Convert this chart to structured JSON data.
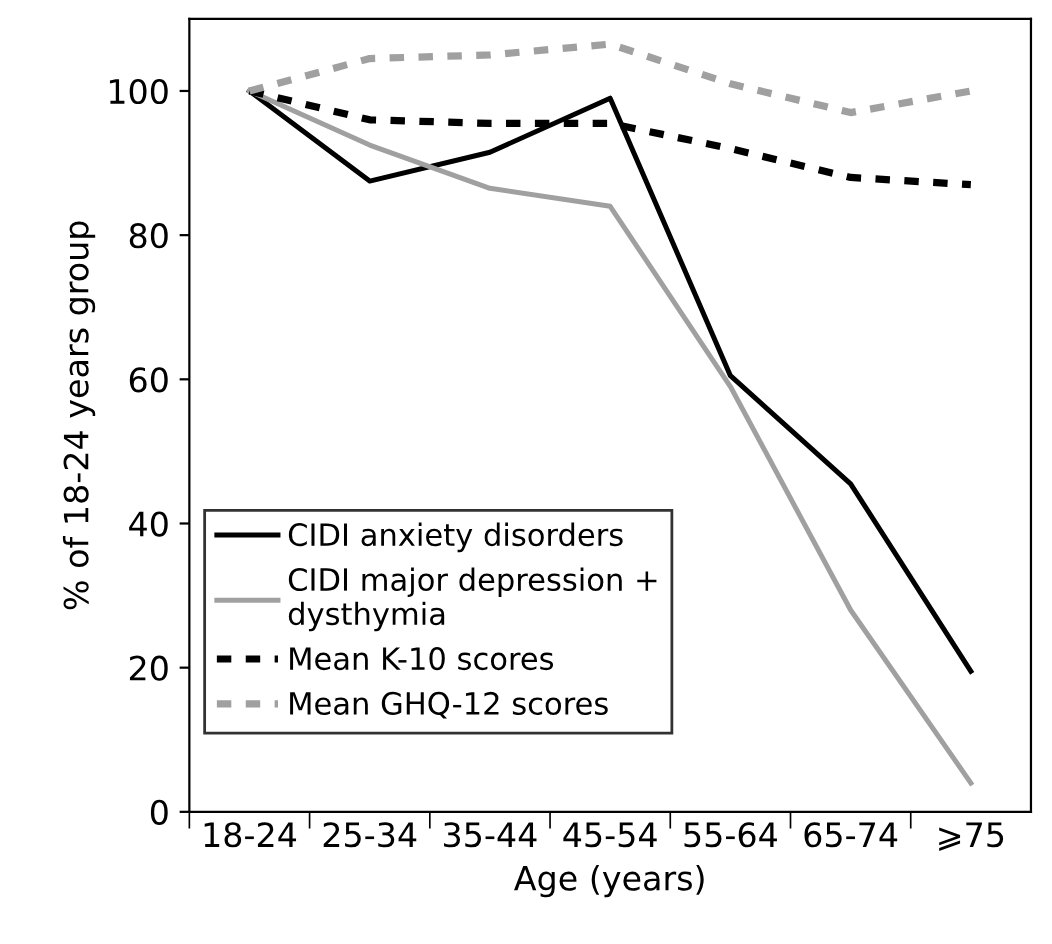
{
  "chart_data": {
    "type": "line",
    "xlabel": "Age (years)",
    "ylabel": "% of 18-24 years group",
    "categories": [
      "18-24",
      "25-34",
      "35-44",
      "45-54",
      "55-64",
      "65-74",
      "⩾75"
    ],
    "ylim": [
      0,
      110
    ],
    "yticks": [
      0,
      20,
      40,
      60,
      80,
      100
    ],
    "grid": false,
    "legend": "bottom left",
    "marker": "none",
    "series": [
      {
        "name": "CIDI anxiety disorders",
        "color": "#000000",
        "line_style": "solid",
        "values": [
          100,
          87.5,
          91.5,
          99,
          60.5,
          45.5,
          19.5
        ]
      },
      {
        "name": "CIDI major depression +\ndysthymia",
        "color": "#a0a0a0",
        "line_style": "solid",
        "values": [
          100,
          92.5,
          86.5,
          84,
          59,
          28,
          4
        ]
      },
      {
        "name": "Mean K-10 scores",
        "color": "#000000",
        "line_style": "dotted",
        "values": [
          100,
          96,
          95.5,
          95.5,
          92,
          88,
          87
        ]
      },
      {
        "name": "Mean GHQ-12 scores",
        "color": "#a0a0a0",
        "line_style": "dotted",
        "values": [
          100,
          104.5,
          105,
          106.5,
          101,
          97,
          100
        ]
      }
    ]
  }
}
